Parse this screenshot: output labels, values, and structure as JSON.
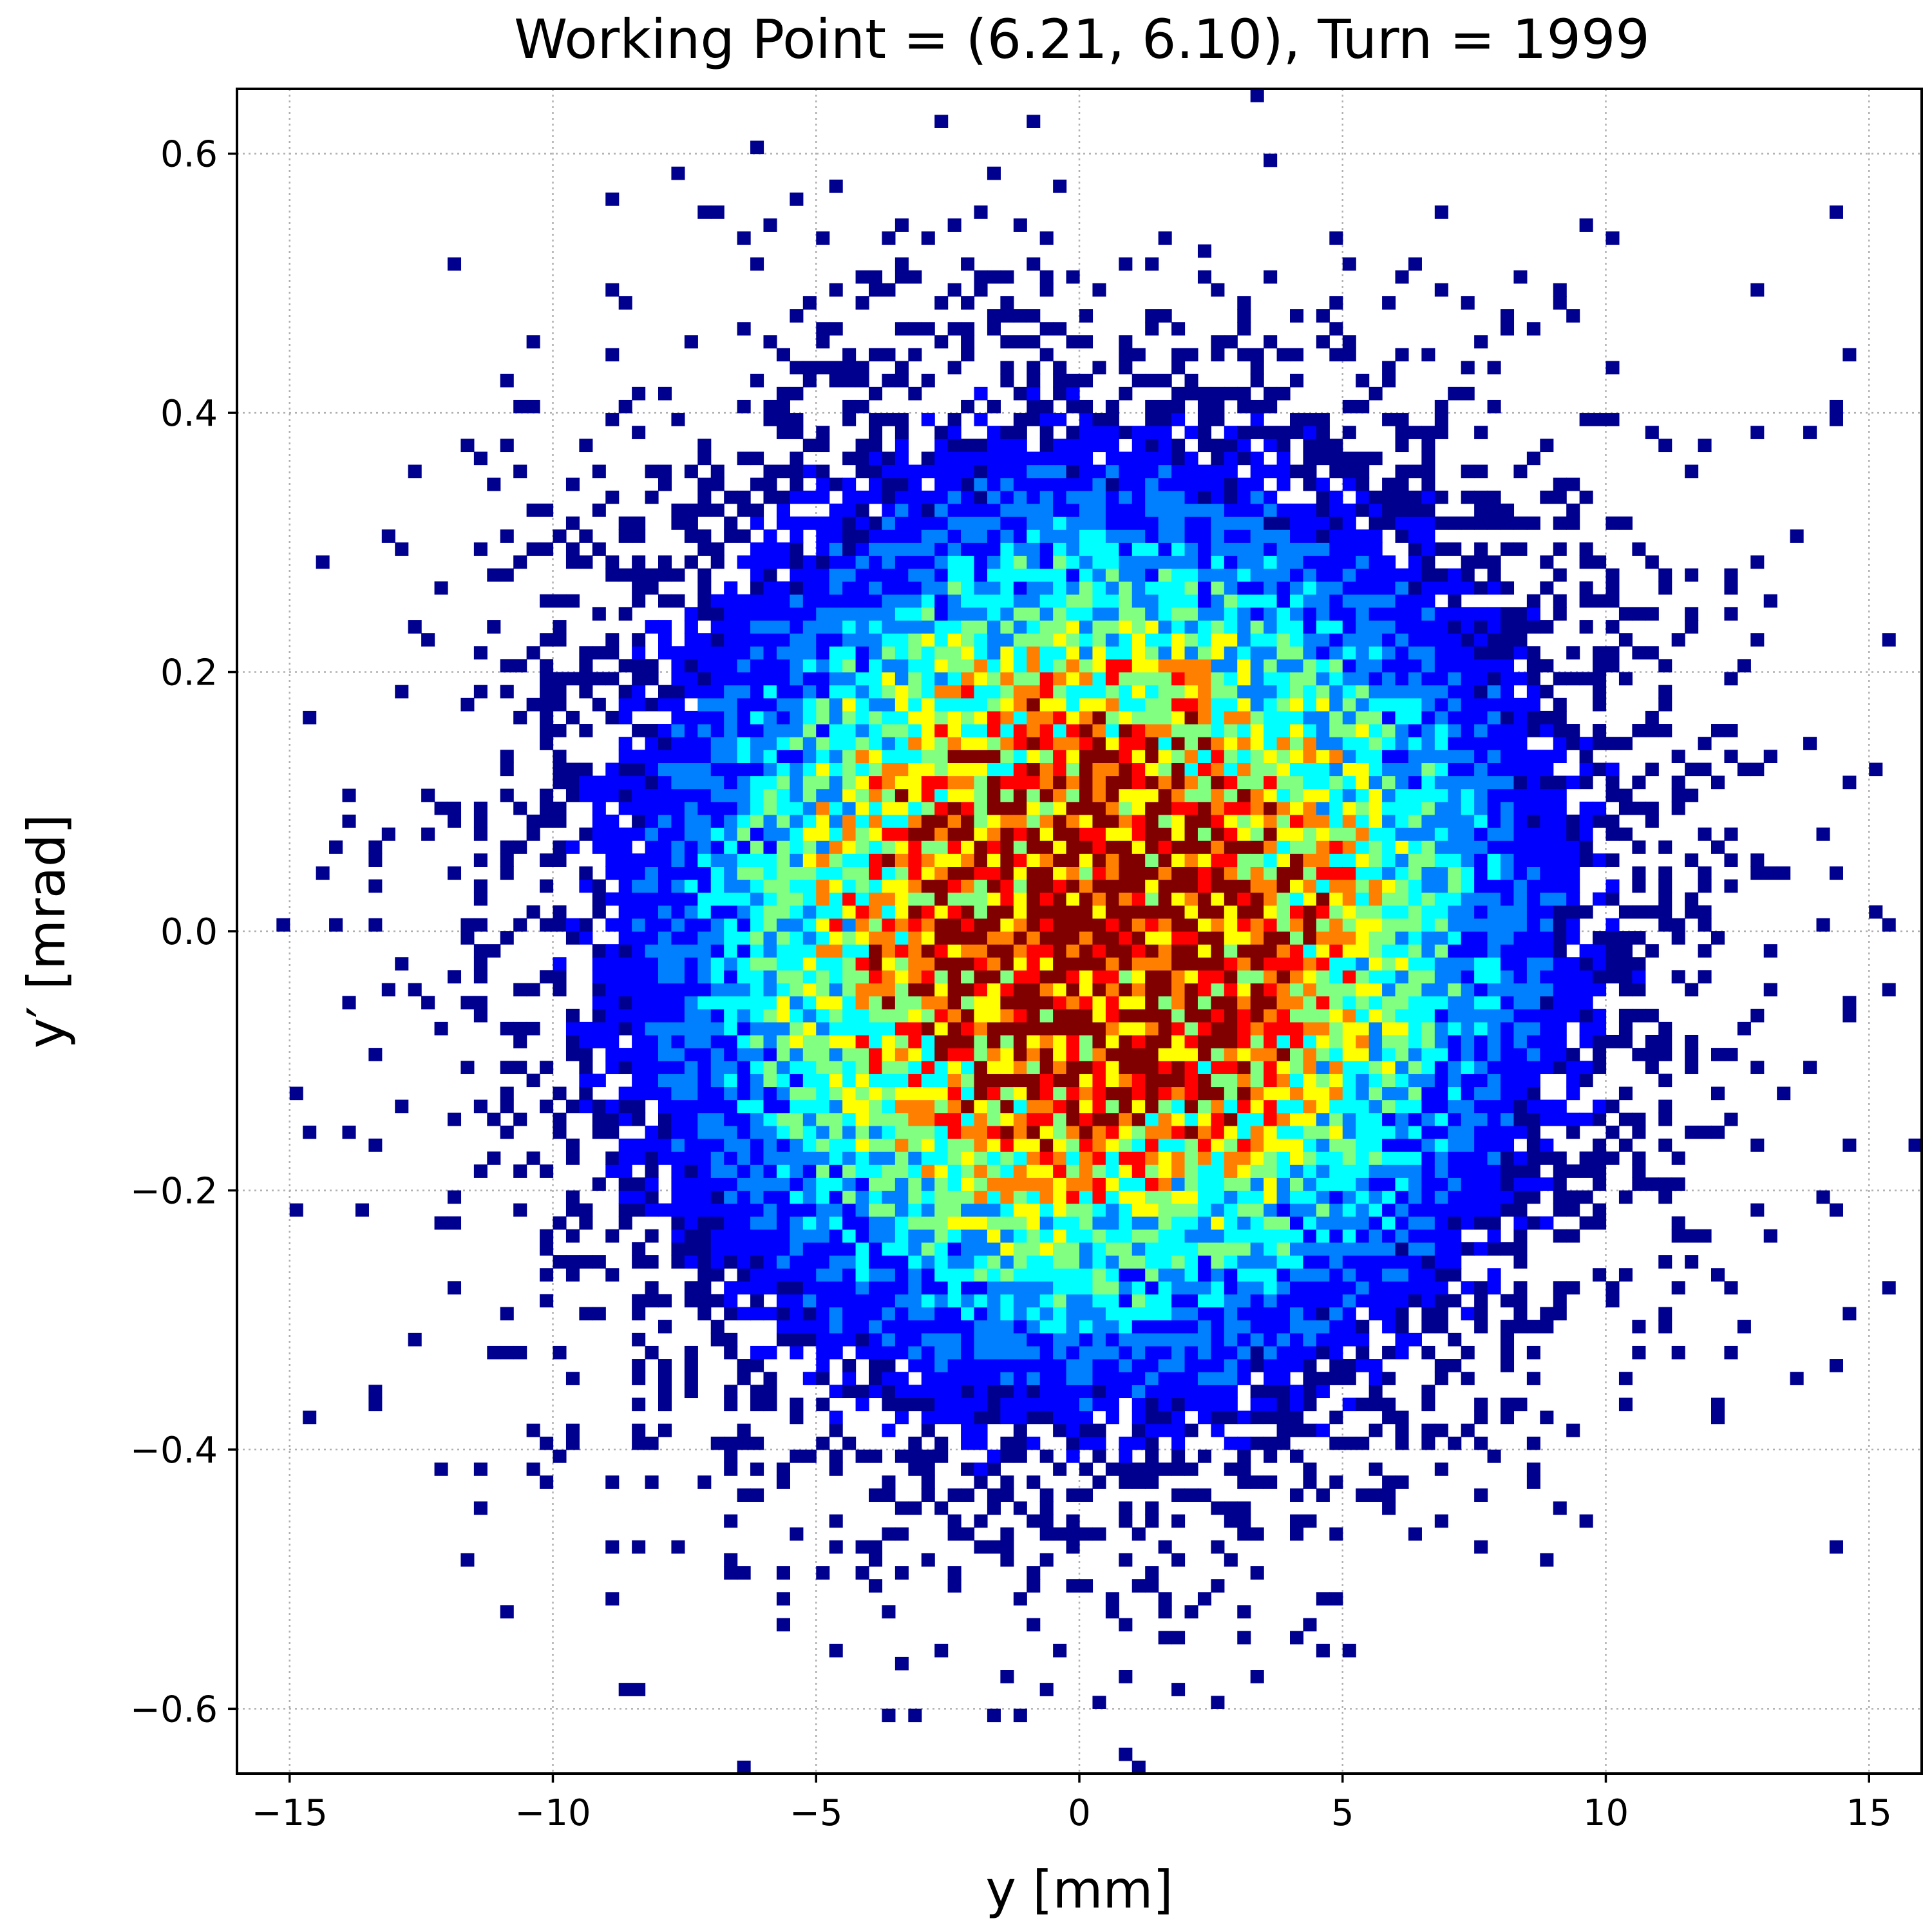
{
  "chart_data": {
    "type": "heatmap",
    "title": "Working Point = (6.21, 6.10), Turn = 1999",
    "xlabel": "y [mm]",
    "ylabel": "y′ [mrad]",
    "xlim": [
      -16,
      16
    ],
    "ylim": [
      -0.65,
      0.65
    ],
    "xticks": [
      -15,
      -10,
      -5,
      0,
      5,
      10,
      15
    ],
    "xtick_labels": [
      "−15",
      "−10",
      "−5",
      "0",
      "5",
      "10",
      "15"
    ],
    "yticks": [
      -0.6,
      -0.4,
      -0.2,
      0.0,
      0.2,
      0.4,
      0.6
    ],
    "ytick_labels": [
      "−0.6",
      "−0.4",
      "−0.2",
      "0.0",
      "0.2",
      "0.4",
      "0.6"
    ],
    "grid": true,
    "colormap": "jet",
    "colormap_stops": [
      "#00008f",
      "#0000ff",
      "#0080ff",
      "#00ffff",
      "#80ff80",
      "#ffff00",
      "#ff8000",
      "#ff0000",
      "#800000"
    ],
    "distribution": {
      "description_center": [
        0.3,
        0.0
      ],
      "sigma_x": 4.6,
      "sigma_y": 0.19,
      "bin_width_x": 0.25,
      "bin_width_y": 0.01,
      "x_range": [
        -16,
        16
      ],
      "y_range": [
        -0.65,
        0.65
      ]
    }
  }
}
